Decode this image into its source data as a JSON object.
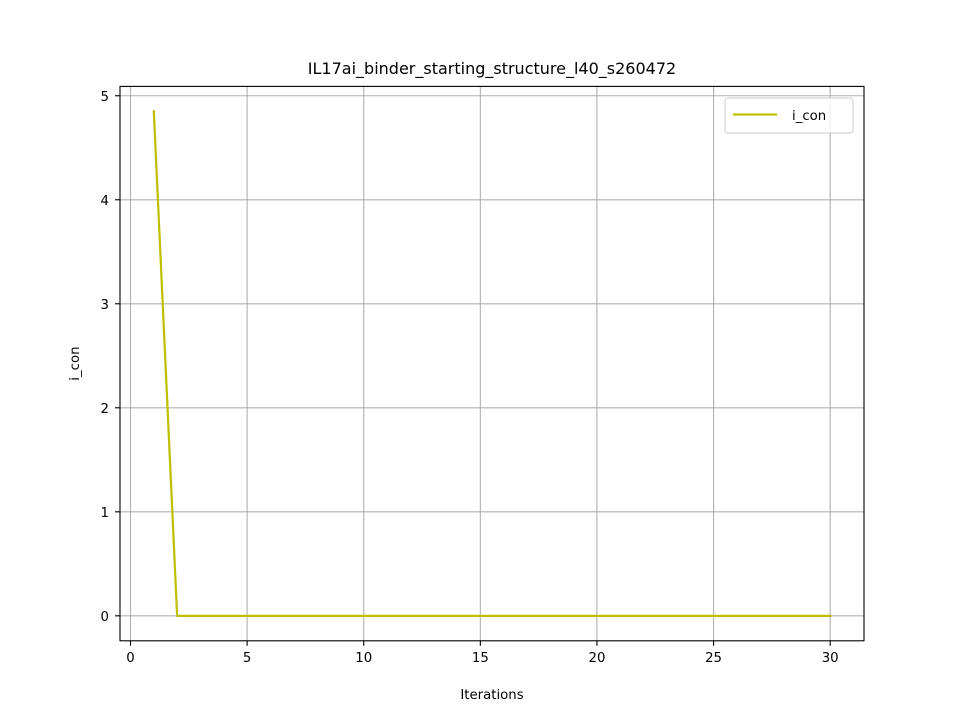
{
  "chart_data": {
    "type": "line",
    "title": "IL17ai_binder_starting_structure_l40_s260472",
    "xlabel": "Iterations",
    "ylabel": "i_con",
    "xlim": [
      -0.45,
      31.45
    ],
    "ylim": [
      -0.24,
      5.09
    ],
    "xticks": [
      0,
      5,
      10,
      15,
      20,
      25,
      30
    ],
    "yticks": [
      0,
      1,
      2,
      3,
      4,
      5
    ],
    "xtick_labels": [
      "0",
      "5",
      "10",
      "15",
      "20",
      "25",
      "30"
    ],
    "ytick_labels": [
      "0",
      "1",
      "2",
      "3",
      "4",
      "5"
    ],
    "grid": true,
    "legend_position": "top-right",
    "series": [
      {
        "name": "i_con",
        "color": "#bfbf00",
        "x": [
          1,
          2,
          3,
          4,
          5,
          6,
          7,
          8,
          9,
          10,
          11,
          12,
          13,
          14,
          15,
          16,
          17,
          18,
          19,
          20,
          21,
          22,
          23,
          24,
          25,
          26,
          27,
          28,
          29,
          30
        ],
        "y": [
          4.85,
          0,
          0,
          0,
          0,
          0,
          0,
          0,
          0,
          0,
          0,
          0,
          0,
          0,
          0,
          0,
          0,
          0,
          0,
          0,
          0,
          0,
          0,
          0,
          0,
          0,
          0,
          0,
          0,
          0
        ]
      }
    ]
  }
}
